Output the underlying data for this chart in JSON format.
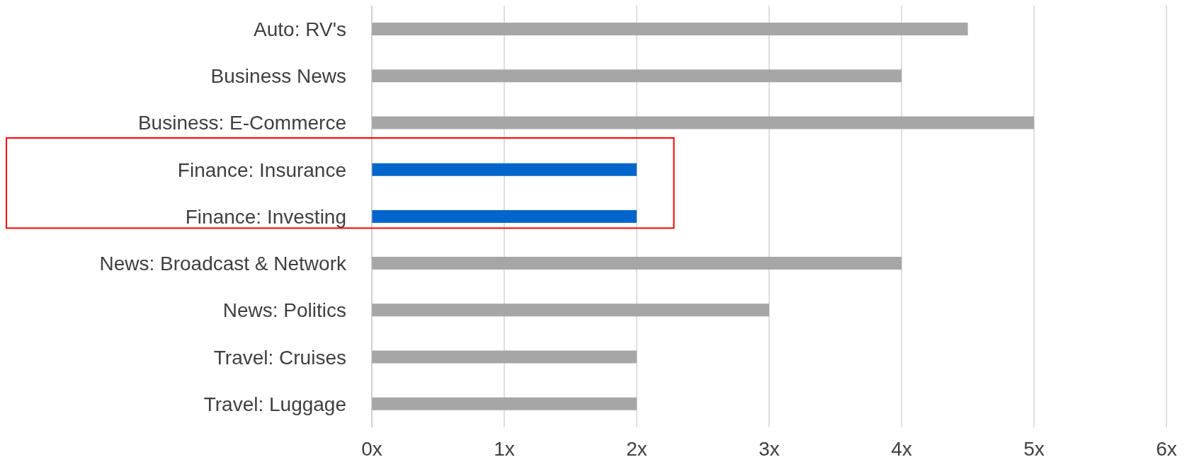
{
  "chart_data": {
    "type": "bar",
    "orientation": "horizontal",
    "categories": [
      "Auto: RV's",
      "Business News",
      "Business: E-Commerce",
      "Finance: Insurance",
      "Finance: Investing",
      "News: Broadcast & Network",
      "News: Politics",
      "Travel: Cruises",
      "Travel: Luggage"
    ],
    "values": [
      4.5,
      4,
      5,
      2,
      2,
      4,
      3,
      2,
      2
    ],
    "colors": [
      "#a6a6a6",
      "#a6a6a6",
      "#a6a6a6",
      "#0066cc",
      "#0066cc",
      "#a6a6a6",
      "#a6a6a6",
      "#a6a6a6",
      "#a6a6a6"
    ],
    "xlim": [
      0,
      6
    ],
    "xticks": [
      {
        "value": 0,
        "label": "0x"
      },
      {
        "value": 1,
        "label": "1x"
      },
      {
        "value": 2,
        "label": "2x"
      },
      {
        "value": 3,
        "label": "3x"
      },
      {
        "value": 4,
        "label": "4x"
      },
      {
        "value": 5,
        "label": "5x"
      },
      {
        "value": 6,
        "label": "6x"
      }
    ],
    "grid": "x"
  }
}
